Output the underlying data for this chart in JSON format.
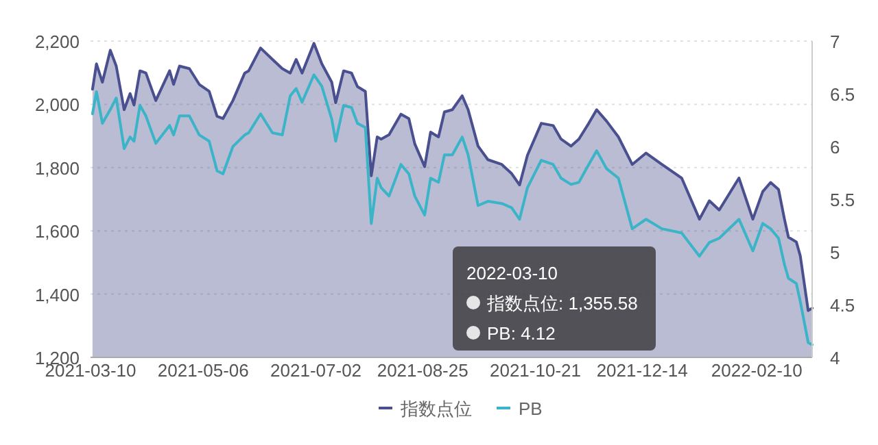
{
  "chart_data": {
    "type": "area",
    "x": [
      "2021-03-11",
      "2021-03-13",
      "2021-03-16",
      "2021-03-20",
      "2021-03-23",
      "2021-03-27",
      "2021-03-30",
      "2021-04-01",
      "2021-04-04",
      "2021-04-07",
      "2021-04-12",
      "2021-04-19",
      "2021-04-21",
      "2021-04-24",
      "2021-04-29",
      "2021-05-04",
      "2021-05-09",
      "2021-05-13",
      "2021-05-16",
      "2021-05-21",
      "2021-05-27",
      "2021-05-29",
      "2021-06-04",
      "2021-06-10",
      "2021-06-15",
      "2021-06-19",
      "2021-06-22",
      "2021-06-25",
      "2021-07-01",
      "2021-07-05",
      "2021-07-10",
      "2021-07-12",
      "2021-07-16",
      "2021-07-20",
      "2021-07-23",
      "2021-07-27",
      "2021-07-30",
      "2021-08-02",
      "2021-08-04",
      "2021-08-08",
      "2021-08-14",
      "2021-08-18",
      "2021-08-21",
      "2021-08-26",
      "2021-08-29",
      "2021-09-02",
      "2021-09-05",
      "2021-09-09",
      "2021-09-14",
      "2021-09-17",
      "2021-09-22",
      "2021-09-27",
      "2021-10-04",
      "2021-10-09",
      "2021-10-13",
      "2021-10-17",
      "2021-10-24",
      "2021-10-30",
      "2021-11-03",
      "2021-11-08",
      "2021-11-12",
      "2021-11-17",
      "2021-11-21",
      "2021-11-26",
      "2021-12-02",
      "2021-12-09",
      "2021-12-16",
      "2021-12-24",
      "2022-01-03",
      "2022-01-12",
      "2022-01-17",
      "2022-01-22",
      "2022-02-01",
      "2022-02-08",
      "2022-02-13",
      "2022-02-17",
      "2022-02-21",
      "2022-02-24",
      "2022-02-26",
      "2022-03-02",
      "2022-03-04",
      "2022-03-08",
      "2022-03-10"
    ],
    "series": [
      {
        "name": "指数点位",
        "type": "area",
        "color": "#4a4f8f",
        "values": [
          2048,
          2128,
          2070,
          2171,
          2121,
          1983,
          2034,
          1998,
          2106,
          2099,
          2012,
          2106,
          2063,
          2121,
          2113,
          2063,
          2041,
          1962,
          1955,
          2012,
          2099,
          2106,
          2178,
          2142,
          2113,
          2099,
          2142,
          2099,
          2193,
          2128,
          2070,
          2005,
          2106,
          2099,
          2056,
          2041,
          1774,
          1897,
          1890,
          1904,
          1969,
          1955,
          1875,
          1803,
          1912,
          1897,
          1976,
          1983,
          2027,
          1983,
          1868,
          1825,
          1810,
          1781,
          1745,
          1839,
          1940,
          1933,
          1890,
          1868,
          1890,
          1940,
          1983,
          1947,
          1897,
          1810,
          1846,
          1810,
          1767,
          1637,
          1695,
          1666,
          1767,
          1637,
          1724,
          1753,
          1731,
          1637,
          1580,
          1565,
          1521,
          1348,
          1355.58
        ]
      },
      {
        "name": "PB",
        "type": "line",
        "axis": "y2",
        "color": "#3bb4c8",
        "values": [
          6.31,
          6.52,
          6.22,
          6.35,
          6.46,
          5.98,
          6.09,
          6.05,
          6.39,
          6.29,
          6.03,
          6.2,
          6.11,
          6.29,
          6.29,
          6.11,
          6.05,
          5.77,
          5.74,
          6.0,
          6.11,
          6.13,
          6.31,
          6.13,
          6.11,
          6.48,
          6.55,
          6.42,
          6.68,
          6.57,
          6.26,
          6.05,
          6.39,
          6.37,
          6.22,
          6.18,
          5.27,
          5.7,
          5.61,
          5.53,
          5.83,
          5.74,
          5.53,
          5.35,
          5.7,
          5.66,
          5.92,
          5.92,
          6.09,
          5.92,
          5.44,
          5.48,
          5.46,
          5.42,
          5.31,
          5.61,
          5.87,
          5.83,
          5.7,
          5.64,
          5.66,
          5.83,
          5.96,
          5.79,
          5.7,
          5.22,
          5.31,
          5.22,
          5.18,
          4.96,
          5.09,
          5.13,
          5.31,
          5.01,
          5.27,
          5.22,
          5.13,
          4.88,
          4.75,
          4.7,
          4.53,
          4.14,
          4.12
        ]
      }
    ],
    "xlim": [
      "2021-03-10",
      "2022-03-10"
    ],
    "xticks": [
      "2021-03-10",
      "2021-05-06",
      "2021-07-02",
      "2021-08-25",
      "2021-10-21",
      "2021-12-14",
      "2022-02-10"
    ],
    "ylim": [
      1200,
      2200
    ],
    "yticks": [
      {
        "value": 1200,
        "label": "1,200"
      },
      {
        "value": 1400,
        "label": "1,400"
      },
      {
        "value": 1600,
        "label": "1,600"
      },
      {
        "value": 1800,
        "label": "1,800"
      },
      {
        "value": 2000,
        "label": "2,000"
      },
      {
        "value": 2200,
        "label": "2,200"
      }
    ],
    "y2lim": [
      4,
      7
    ],
    "y2ticks": [
      4,
      4.5,
      5,
      5.5,
      6,
      6.5,
      7
    ],
    "grid": "y",
    "legend": "bottom",
    "annotations": [
      "2022-03-10",
      "指数点位: 1,355.58",
      "PB: 4.12"
    ]
  }
}
